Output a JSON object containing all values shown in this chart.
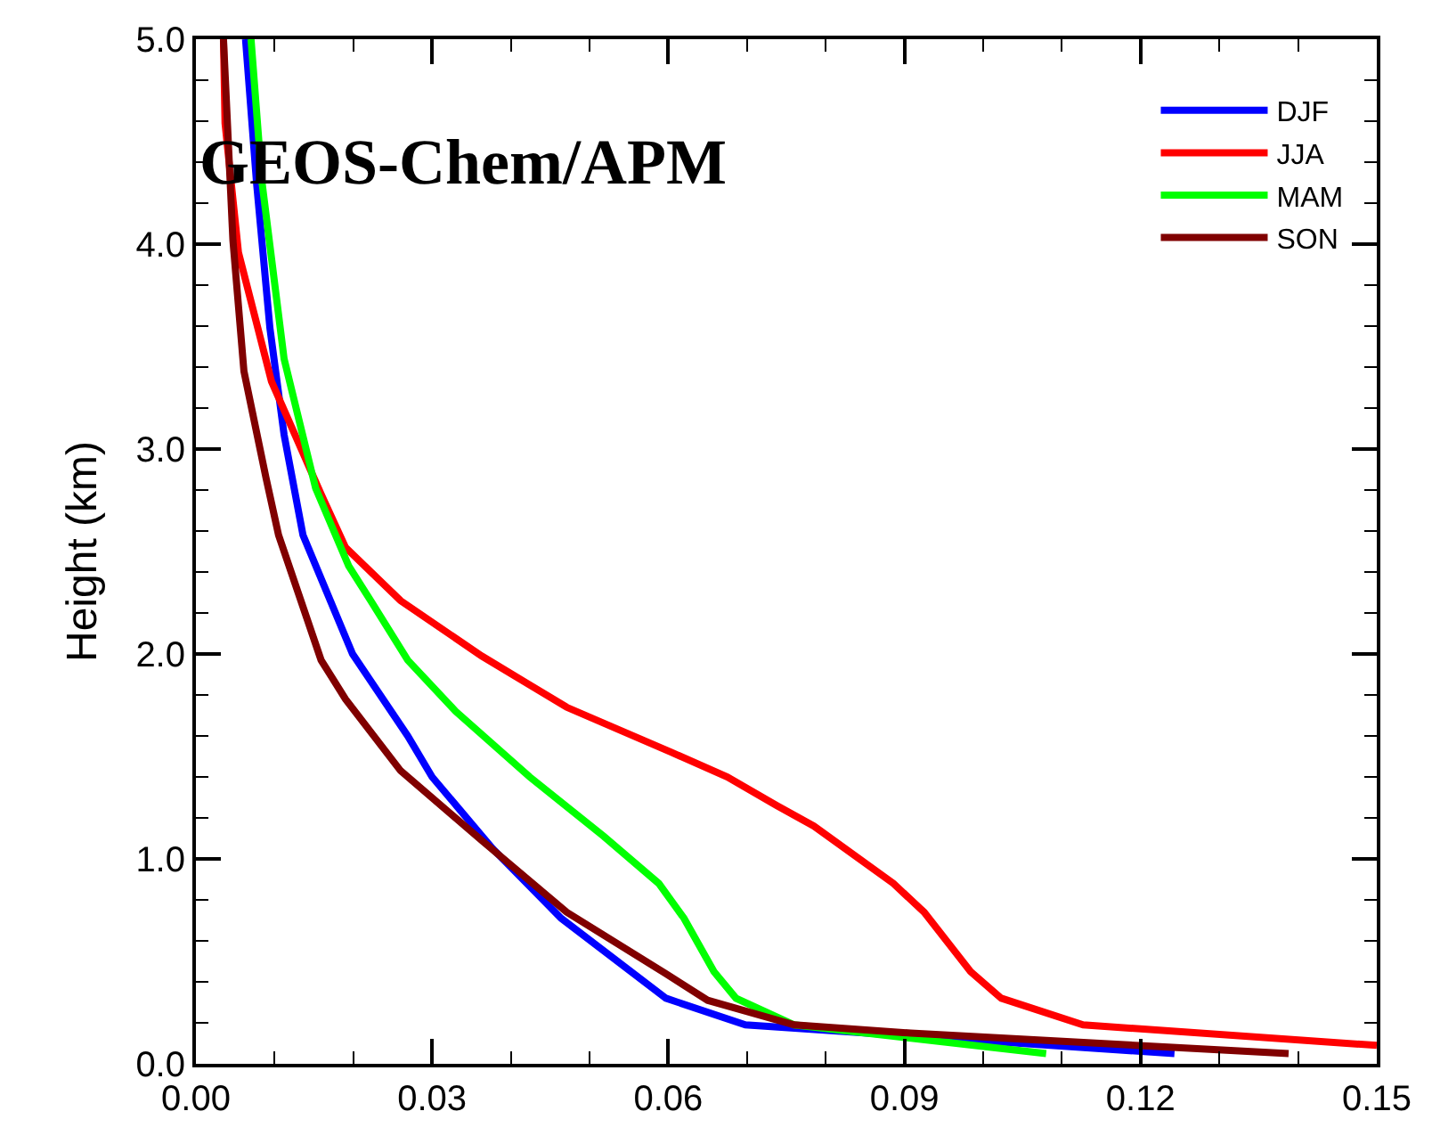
{
  "chart_data": {
    "type": "line",
    "ylabel": "Height (km)",
    "annotations": [
      "GEOS-Chem/APM"
    ],
    "xlim": [
      0,
      0.15
    ],
    "xticks": [
      {
        "value": 0,
        "label": "0.00"
      },
      {
        "value": 0.03,
        "label": "0.03"
      },
      {
        "value": 0.06,
        "label": "0.06"
      },
      {
        "value": 0.09,
        "label": "0.09"
      },
      {
        "value": 0.12,
        "label": "0.12"
      },
      {
        "value": 0.15,
        "label": "0.15"
      }
    ],
    "ylim": [
      0,
      5
    ],
    "yticks": [
      {
        "value": 0,
        "label": "0.0"
      },
      {
        "value": 1,
        "label": "1.0"
      },
      {
        "value": 2,
        "label": "2.0"
      },
      {
        "value": 3,
        "label": "3.0"
      },
      {
        "value": 4,
        "label": "4.0"
      },
      {
        "value": 5,
        "label": "5.0"
      }
    ],
    "legend": "top right",
    "marker": "none",
    "line_style": "solid",
    "series": [
      {
        "name": "DJF",
        "color": "#0000ff",
        "x": [
          0.0063,
          0.0077,
          0.0094,
          0.0112,
          0.0136,
          0.0199,
          0.0269,
          0.03,
          0.0377,
          0.0464,
          0.0597,
          0.0698,
          0.1243
        ],
        "values": [
          5.0,
          4.3,
          3.59,
          3.07,
          2.58,
          2.0,
          1.6,
          1.4,
          1.05,
          0.71,
          0.32,
          0.19,
          0.05
        ]
      },
      {
        "name": "JJA",
        "color": "#ff0000",
        "x": [
          0.0035,
          0.0037,
          0.0054,
          0.0096,
          0.0159,
          0.019,
          0.026,
          0.0363,
          0.0471,
          0.0604,
          0.0675,
          0.0738,
          0.0785,
          0.0886,
          0.0925,
          0.0984,
          0.1023,
          0.1127,
          0.15
        ],
        "values": [
          5.0,
          4.59,
          3.96,
          3.33,
          2.78,
          2.52,
          2.26,
          1.99,
          1.74,
          1.52,
          1.4,
          1.26,
          1.16,
          0.88,
          0.74,
          0.45,
          0.32,
          0.19,
          0.09
        ]
      },
      {
        "name": "MAM",
        "color": "#00ff00",
        "x": [
          0.007,
          0.0084,
          0.0112,
          0.0152,
          0.0194,
          0.0222,
          0.0269,
          0.033,
          0.0424,
          0.0518,
          0.0588,
          0.062,
          0.0658,
          0.0686,
          0.076,
          0.108
        ],
        "values": [
          5.0,
          4.3,
          3.44,
          2.81,
          2.43,
          2.26,
          1.97,
          1.72,
          1.4,
          1.11,
          0.88,
          0.71,
          0.45,
          0.32,
          0.19,
          0.05
        ]
      },
      {
        "name": "SON",
        "color": "#800000",
        "x": [
          0.0035,
          0.0047,
          0.0061,
          0.0089,
          0.0105,
          0.0159,
          0.019,
          0.026,
          0.0363,
          0.0471,
          0.0597,
          0.065,
          0.076,
          0.0908,
          0.1388
        ],
        "values": [
          5.0,
          4.02,
          3.38,
          2.86,
          2.58,
          1.97,
          1.78,
          1.43,
          1.09,
          0.74,
          0.44,
          0.31,
          0.19,
          0.15,
          0.05
        ]
      }
    ]
  }
}
